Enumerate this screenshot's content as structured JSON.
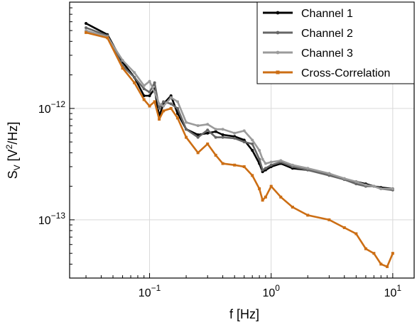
{
  "chart_data": {
    "type": "line",
    "xlabel": "f [Hz]",
    "ylabel_main": "S",
    "ylabel_sub": "V",
    "ylabel_rest": " [V",
    "ylabel_sup": "2",
    "ylabel_end": "/Hz]",
    "x_scale": "log",
    "y_scale": "log",
    "xlim": [
      0.022,
      15
    ],
    "ylim": [
      3e-14,
      9e-12
    ],
    "grid": true,
    "legend_position": "top-right",
    "x_ticks": [
      {
        "value": 0.1,
        "base": "10",
        "exp": "−1"
      },
      {
        "value": 1,
        "base": "10",
        "exp": "0"
      },
      {
        "value": 10,
        "base": "10",
        "exp": "1"
      }
    ],
    "y_ticks": [
      {
        "value": 1e-13,
        "base": "10",
        "exp": "−13"
      },
      {
        "value": 1e-12,
        "base": "10",
        "exp": "−12"
      }
    ],
    "series": [
      {
        "name": "Channel 1",
        "color": "#000000",
        "x": [
          0.03,
          0.045,
          0.06,
          0.075,
          0.09,
          0.1,
          0.11,
          0.12,
          0.13,
          0.15,
          0.17,
          0.2,
          0.25,
          0.3,
          0.35,
          0.4,
          0.5,
          0.6,
          0.7,
          0.8,
          0.85,
          0.9,
          1.0,
          1.2,
          1.5,
          2.0,
          3.0,
          4.0,
          5.0,
          6.0,
          7.0,
          8.0,
          10.0
        ],
        "y": [
          5.8e-12,
          4.6e-12,
          2.6e-12,
          1.9e-12,
          1.3e-12,
          1.3e-12,
          1.5e-12,
          8.5e-13,
          1.1e-12,
          1.3e-12,
          9e-13,
          6.5e-13,
          5.8e-13,
          6e-13,
          6.2e-13,
          5.8e-13,
          5.6e-13,
          5.2e-13,
          4.2e-13,
          3.2e-13,
          2.7e-13,
          2.8e-13,
          3e-13,
          3.2e-13,
          2.9e-13,
          2.8e-13,
          2.6e-13,
          2.3e-13,
          2.2e-13,
          2.1e-13,
          2e-13,
          1.95e-13,
          1.9e-13
        ]
      },
      {
        "name": "Channel 2",
        "color": "#666666",
        "x": [
          0.03,
          0.045,
          0.06,
          0.075,
          0.09,
          0.1,
          0.11,
          0.12,
          0.13,
          0.15,
          0.17,
          0.2,
          0.25,
          0.3,
          0.35,
          0.4,
          0.5,
          0.6,
          0.7,
          0.8,
          0.85,
          0.9,
          1.0,
          1.2,
          1.5,
          2.0,
          3.0,
          4.0,
          5.0,
          6.0,
          7.0,
          8.0,
          10.0
        ],
        "y": [
          5.3e-12,
          4.5e-12,
          2.4e-12,
          1.9e-12,
          1.5e-12,
          1.4e-12,
          1.7e-12,
          1e-12,
          1.15e-12,
          1.1e-12,
          1e-12,
          6.5e-13,
          5.5e-13,
          6.4e-13,
          5.5e-13,
          5.5e-13,
          5.4e-13,
          5e-13,
          4.8e-13,
          3.5e-13,
          2.8e-13,
          2.9e-13,
          3.1e-13,
          3.3e-13,
          3e-13,
          2.8e-13,
          2.5e-13,
          2.3e-13,
          2.1e-13,
          2e-13,
          2e-13,
          1.9e-13,
          1.85e-13
        ]
      },
      {
        "name": "Channel 3",
        "color": "#9b9b9b",
        "x": [
          0.03,
          0.045,
          0.06,
          0.075,
          0.09,
          0.1,
          0.11,
          0.12,
          0.13,
          0.15,
          0.17,
          0.2,
          0.25,
          0.3,
          0.35,
          0.4,
          0.5,
          0.6,
          0.7,
          0.8,
          0.85,
          0.9,
          1.0,
          1.2,
          1.5,
          2.0,
          3.0,
          4.0,
          5.0,
          6.0,
          7.0,
          8.0,
          10.0
        ],
        "y": [
          5e-12,
          4.4e-12,
          2.7e-12,
          2.1e-12,
          1.6e-12,
          1.75e-12,
          1.4e-12,
          1.1e-12,
          1.05e-12,
          1.25e-12,
          1.15e-12,
          7.5e-13,
          7e-13,
          7.2e-13,
          6.5e-13,
          6.5e-13,
          6e-13,
          6.3e-13,
          5.2e-13,
          4.2e-13,
          3.5e-13,
          3.2e-13,
          3.3e-13,
          3.4e-13,
          3.1e-13,
          2.9e-13,
          2.6e-13,
          2.35e-13,
          2.2e-13,
          2.05e-13,
          2e-13,
          1.9e-13,
          1.9e-13
        ]
      },
      {
        "name": "Cross-Correlation",
        "color": "#cc6e14",
        "x": [
          0.03,
          0.045,
          0.06,
          0.075,
          0.09,
          0.1,
          0.11,
          0.12,
          0.13,
          0.15,
          0.17,
          0.2,
          0.25,
          0.3,
          0.35,
          0.4,
          0.5,
          0.6,
          0.7,
          0.8,
          0.85,
          0.9,
          1.0,
          1.2,
          1.5,
          2.0,
          3.0,
          4.0,
          5.0,
          6.0,
          7.0,
          8.0,
          9.0,
          10.0
        ],
        "y": [
          4.8e-12,
          4.3e-12,
          2.3e-12,
          1.7e-12,
          1.2e-12,
          1.05e-12,
          1.15e-12,
          8e-13,
          9.5e-13,
          1e-12,
          8.2e-13,
          5.5e-13,
          4e-13,
          4.8e-13,
          3.8e-13,
          3.2e-13,
          3.1e-13,
          3e-13,
          2.5e-13,
          1.9e-13,
          1.5e-13,
          1.6e-13,
          2e-13,
          1.6e-13,
          1.3e-13,
          1.1e-13,
          1e-13,
          8.5e-14,
          7.5e-14,
          5.5e-14,
          5e-14,
          4e-14,
          3.8e-14,
          5e-14
        ]
      }
    ]
  }
}
